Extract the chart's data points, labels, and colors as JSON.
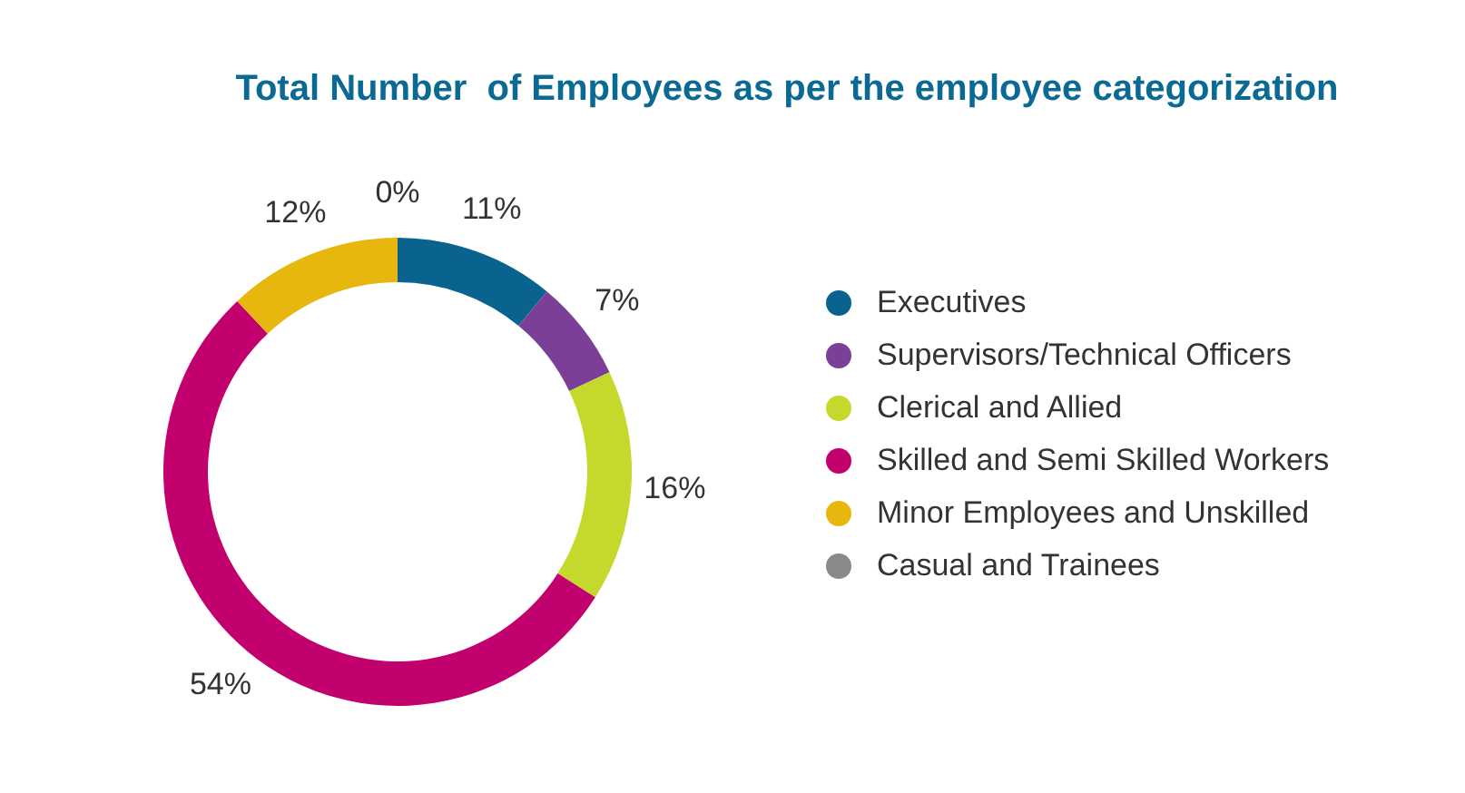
{
  "chart_data": {
    "type": "donut",
    "title": "Total Number  of Employees as per the employee categorization",
    "categories": [
      "Executives",
      "Supervisors/Technical Officers",
      "Clerical and Allied",
      "Skilled and Semi Skilled Workers",
      "Minor Employees and Unskilled",
      "Casual and Trainees"
    ],
    "values": [
      11,
      7,
      16,
      54,
      12,
      0
    ],
    "value_labels": [
      "11%",
      "7%",
      "16%",
      "54%",
      "12%",
      "0%"
    ],
    "colors": [
      "#0a628f",
      "#7b3f98",
      "#c5d92d",
      "#c2006e",
      "#e8b70d",
      "#8a8a8d"
    ],
    "legend": "right"
  }
}
